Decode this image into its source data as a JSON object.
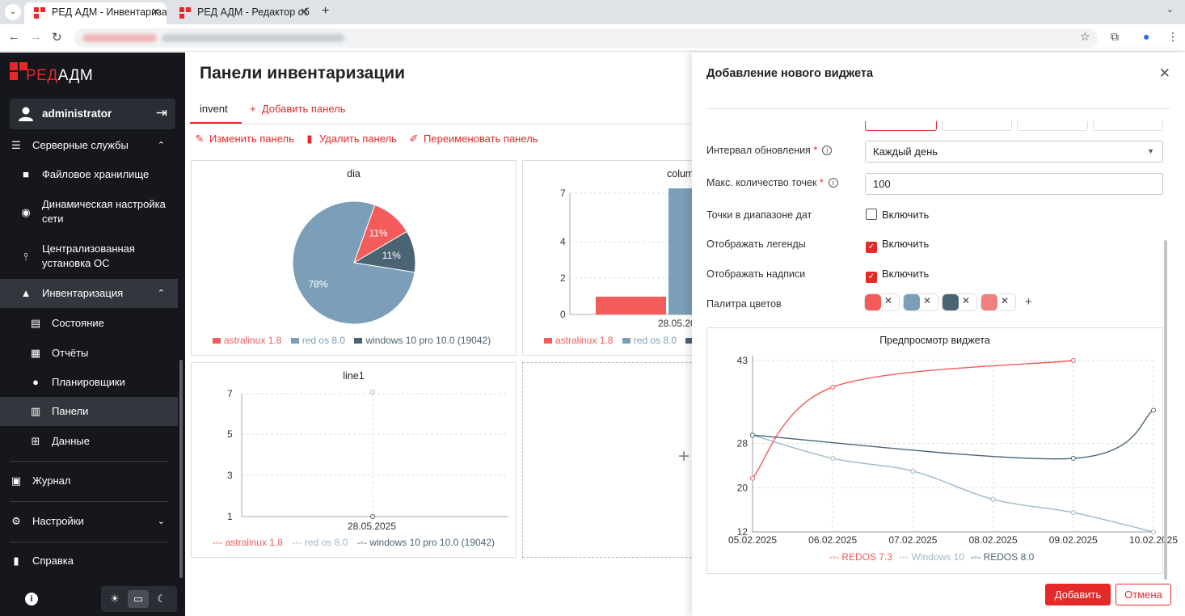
{
  "browser": {
    "tabs": [
      {
        "title": "РЕД АДМ - Инвентариза",
        "active": true
      },
      {
        "title": "РЕД АДМ - Редактор об",
        "active": false
      }
    ],
    "new_tab": "+"
  },
  "app": {
    "logo_red": "РЕД",
    "logo_white": "АДМ",
    "user": "administrator"
  },
  "sidebar": {
    "server_services": "Серверные службы",
    "file_storage": "Файловое хранилище",
    "dhcp_line1": "Динамическая настройка",
    "dhcp_line2": "сети",
    "os_install_line1": "Централизованная",
    "os_install_line2": "установка ОС",
    "inventory": "Инвентаризация",
    "state": "Состояние",
    "reports": "Отчёты",
    "schedulers": "Планировщики",
    "panels": "Панели",
    "data": "Данные",
    "journal": "Журнал",
    "settings": "Настройки",
    "help": "Справка"
  },
  "main": {
    "title": "Панели инвентаризации",
    "tab_invent": "invent",
    "tab_add": "Добавить панель",
    "edit_panel": "Изменить панель",
    "delete_panel": "Удалить панель",
    "rename_panel": "Переименовать панель",
    "add_widget_plus": "+"
  },
  "widgets": {
    "pie": {
      "title": "dia",
      "slices": [
        {
          "name": "astralinux 1.8",
          "pct": 11,
          "label": "11%",
          "color": "#f45b5b"
        },
        {
          "name": "windows 10 pro 10.0 (19042)",
          "pct": 11,
          "label": "11%",
          "color": "#4b6473"
        },
        {
          "name": "red os 8.0",
          "pct": 78,
          "label": "78%",
          "color": "#7b9fb8"
        }
      ],
      "legend": [
        "astralinux 1.8",
        "red os 8.0",
        "windows 10 pro 10.0 (19042)"
      ]
    },
    "column": {
      "title": "colum",
      "category": "28.05.20",
      "y_ticks": [
        "7",
        "4",
        "2",
        "0"
      ],
      "legend": [
        "astralinux 1.8",
        "red os 8.0"
      ]
    },
    "line1": {
      "title": "line1",
      "category": "28.05.2025",
      "y_ticks": [
        "7",
        "5",
        "3",
        "1"
      ],
      "legend": [
        "astralinux 1.8",
        "red os 8.0",
        "windows 10 pro 10.0 (19042)"
      ]
    }
  },
  "drawer": {
    "title": "Добавление нового виджета",
    "interval_label": "Интервал обновления",
    "interval_value": "Каждый день",
    "max_points_label": "Макс. количество точек",
    "max_points_value": "100",
    "date_range_label": "Точки в диапазоне дат",
    "legend_label": "Отображать легенды",
    "captions_label": "Отображать надписи",
    "enable": "Включить",
    "date_range_on": false,
    "legend_on": true,
    "captions_on": true,
    "palette_label": "Палитра цветов",
    "palette": [
      "#f45b5b",
      "#7b9fb8",
      "#4b6473",
      "#f08080"
    ],
    "preview_title": "Предпросмотр виджета",
    "add_button": "Добавить",
    "cancel_button": "Отмена"
  },
  "chart_data": {
    "type": "line",
    "title": "Предпросмотр виджета",
    "x": [
      "05.02.2025",
      "06.02.2025",
      "07.02.2025",
      "08.02.2025",
      "09.02.2025",
      "10.02.2025"
    ],
    "series": [
      {
        "name": "REDOS 7.3",
        "color": "#f45b5b",
        "values": [
          21.7,
          38.2,
          null,
          null,
          43,
          null
        ]
      },
      {
        "name": "Windows 10",
        "color": "#9fb8c8",
        "values": [
          29.5,
          25.3,
          23,
          17.9,
          15.5,
          12
        ]
      },
      {
        "name": "REDOS 8.0",
        "color": "#4b6473",
        "values": [
          29.5,
          null,
          null,
          null,
          25.3,
          34
        ]
      }
    ],
    "y_ticks": [
      43,
      28,
      20,
      12
    ],
    "ylim": [
      12,
      43
    ],
    "grid": true,
    "legend_position": "bottom"
  }
}
